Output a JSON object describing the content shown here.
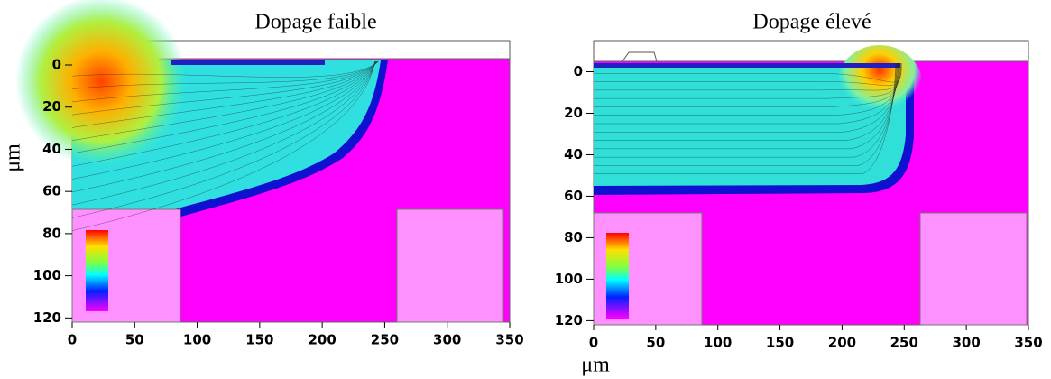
{
  "chart_data": [
    {
      "type": "contour",
      "title": "Dopage faible",
      "ylabel": "μm",
      "xlim": [
        0,
        350
      ],
      "ylim": [
        -3,
        122
      ],
      "xticks": [
        0,
        50,
        100,
        150,
        200,
        250,
        300,
        350
      ],
      "yticks": [
        0,
        20,
        40,
        60,
        80,
        100,
        120
      ]
    },
    {
      "type": "contour",
      "title": "Dopage élevé",
      "xlabel": "μm",
      "xlim": [
        0,
        350
      ],
      "ylim": [
        -5,
        122
      ],
      "xticks": [
        0,
        50,
        100,
        150,
        200,
        250,
        300,
        350
      ],
      "yticks": [
        0,
        20,
        40,
        60,
        80,
        100,
        120
      ]
    }
  ]
}
